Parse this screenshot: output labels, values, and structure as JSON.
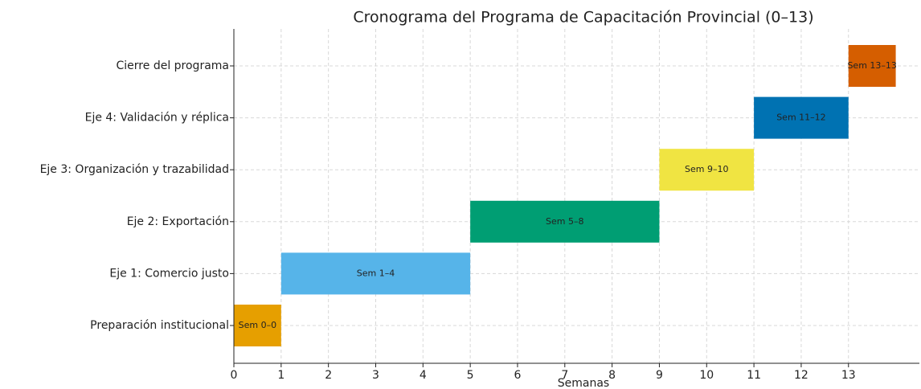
{
  "chart_data": {
    "type": "gantt",
    "title": "Cronograma del Programa de Capacitación Provincial (0–13)",
    "xlabel": "Semanas",
    "categories": [
      "Preparación institucional",
      "Eje 1: Comercio justo",
      "Eje 2: Exportación",
      "Eje 3: Organización y trazabilidad",
      "Eje 4: Validación y réplica",
      "Cierre del programa"
    ],
    "start": [
      0,
      1,
      5,
      9,
      11,
      13
    ],
    "duration": [
      1,
      4,
      4,
      2,
      2,
      1
    ],
    "value_labels": [
      "Sem 0–0",
      "Sem 1–4",
      "Sem 5–8",
      "Sem 9–10",
      "Sem 11–12",
      "Sem 13–13"
    ],
    "colors": [
      "#E69F00",
      "#56B4E9",
      "#009E73",
      "#F0E442",
      "#0072B2",
      "#D55E00"
    ],
    "xlim": [
      0,
      14.5
    ],
    "xticks": [
      0,
      1,
      2,
      3,
      4,
      5,
      6,
      7,
      8,
      9,
      10,
      11,
      12,
      13
    ],
    "grid": true
  }
}
